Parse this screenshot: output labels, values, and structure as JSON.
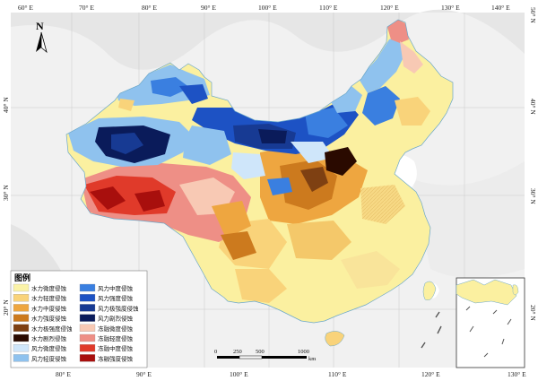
{
  "map": {
    "top_ticks": [
      "60° E",
      "70° E",
      "80° E",
      "90° E",
      "100° E",
      "110° E",
      "120° E",
      "130° E",
      "140° E"
    ],
    "bottom_ticks": [
      "80° E",
      "90° E",
      "100° E",
      "110° E",
      "120° E",
      "130° E"
    ],
    "left_ticks": [
      "40° N",
      "30° N",
      "20° N"
    ],
    "right_ticks": [
      "50° N",
      "40° N",
      "30° N",
      "20° N"
    ],
    "north_label": "N",
    "legend_title": "图例",
    "legend": [
      {
        "label": "水力微度侵蚀",
        "color": "#fbf3a8"
      },
      {
        "label": "水力轻度侵蚀",
        "color": "#f9d37a"
      },
      {
        "label": "水力中度侵蚀",
        "color": "#eea640"
      },
      {
        "label": "水力强度侵蚀",
        "color": "#cc7a1e"
      },
      {
        "label": "水力极强度侵蚀",
        "color": "#7e4012"
      },
      {
        "label": "水力剧烈侵蚀",
        "color": "#2a0a00"
      },
      {
        "label": "风力微度侵蚀",
        "color": "#cfe6fa"
      },
      {
        "label": "风力轻度侵蚀",
        "color": "#8fc2ee"
      },
      {
        "label": "风力中度侵蚀",
        "color": "#3a7fe0"
      },
      {
        "label": "风力强度侵蚀",
        "color": "#1d52c4"
      },
      {
        "label": "风力极强度侵蚀",
        "color": "#173a93"
      },
      {
        "label": "风力剧烈侵蚀",
        "color": "#0a1b5a"
      },
      {
        "label": "冻融微度侵蚀",
        "color": "#f8c9b4"
      },
      {
        "label": "冻融轻度侵蚀",
        "color": "#ee8f86"
      },
      {
        "label": "冻融中度侵蚀",
        "color": "#e03a2a"
      },
      {
        "label": "冻融强度侵蚀",
        "color": "#a80f0d"
      }
    ],
    "scale": {
      "labels": [
        "0",
        "250",
        "500",
        "1000"
      ],
      "unit": "km"
    }
  }
}
